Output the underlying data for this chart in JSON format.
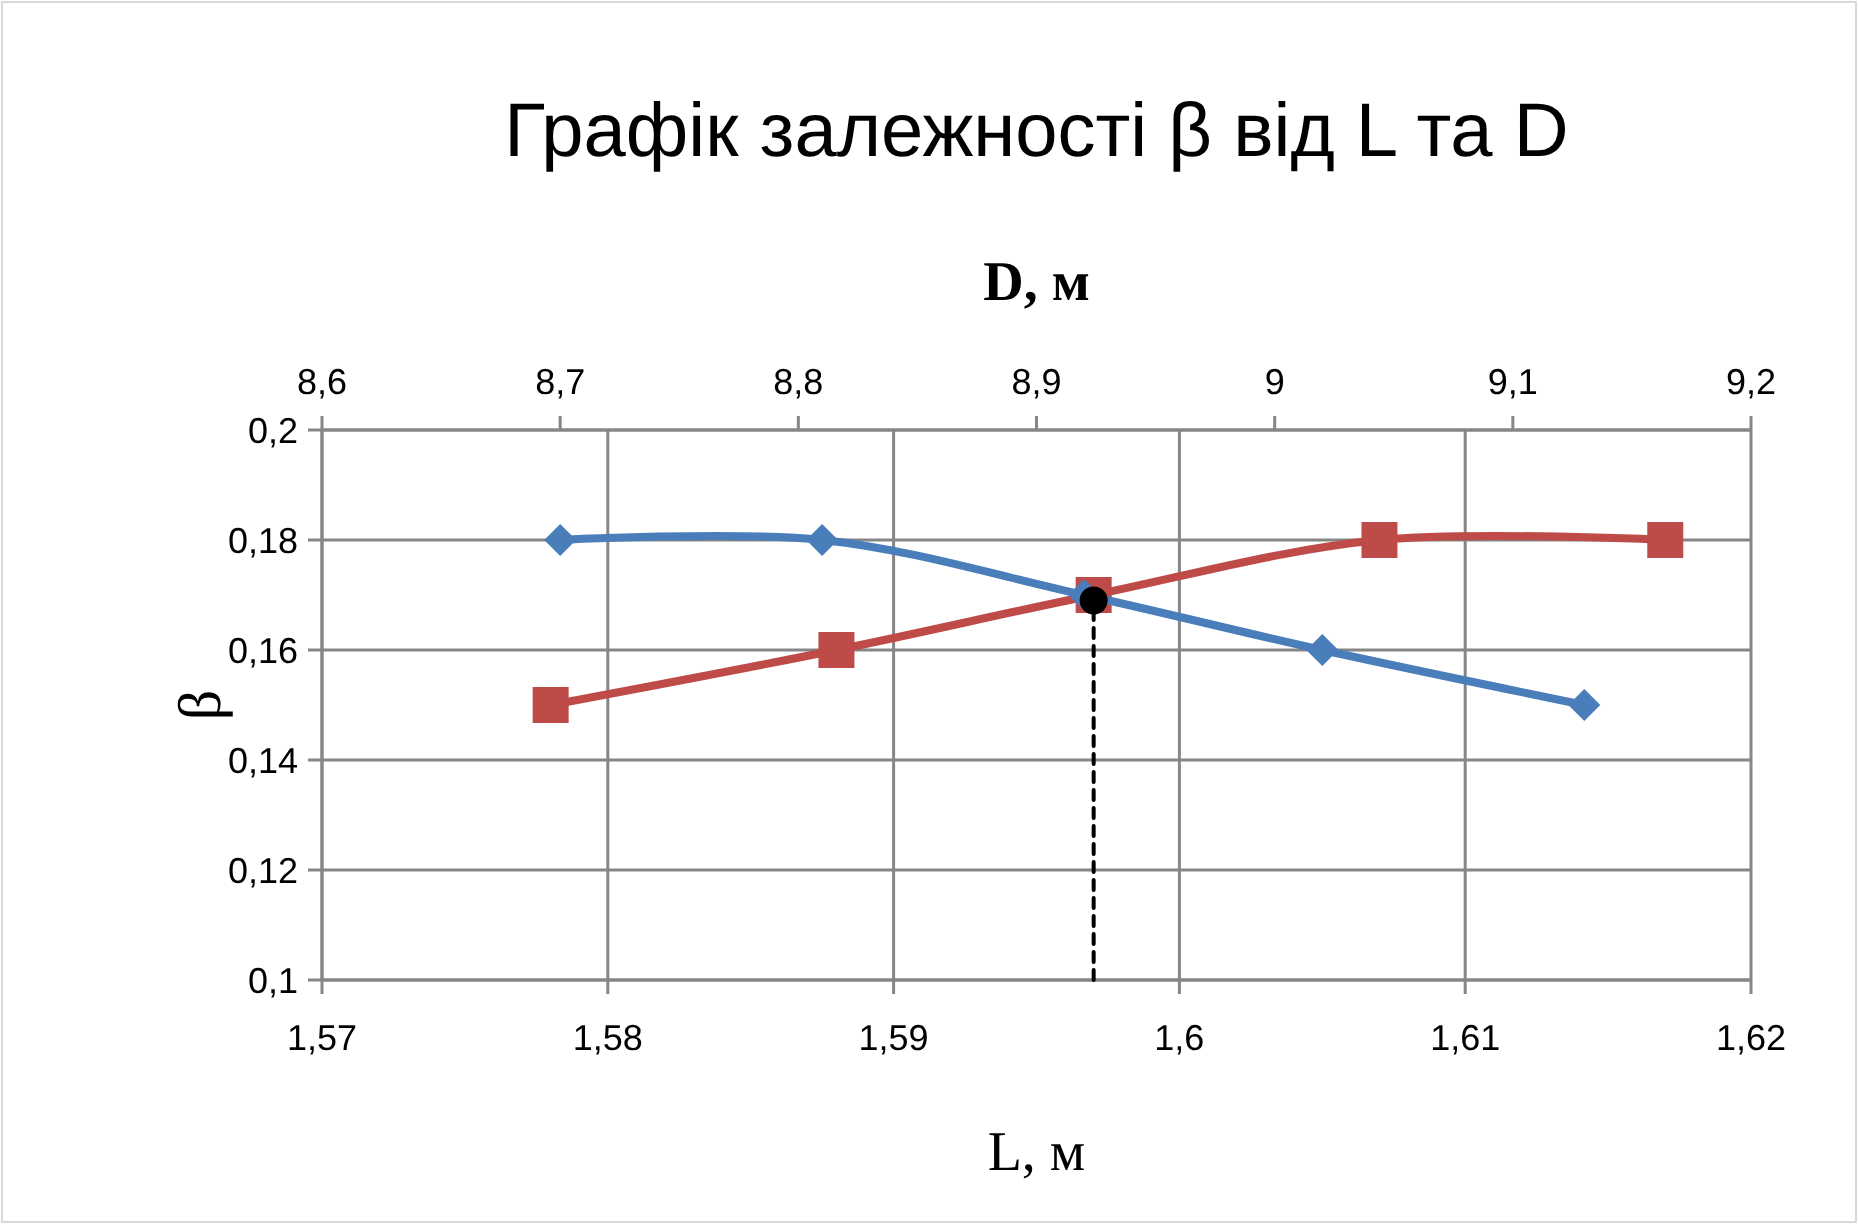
{
  "chart_data": {
    "type": "line",
    "title": "Графік залежності β від L та D",
    "xlabel": "L, м",
    "x2label": "D, м",
    "ylabel": "β",
    "xlim": [
      1.57,
      1.62
    ],
    "xticks": [
      {
        "value": 1.57,
        "label": "1,57"
      },
      {
        "value": 1.58,
        "label": "1,58"
      },
      {
        "value": 1.59,
        "label": "1,59"
      },
      {
        "value": 1.6,
        "label": "1,6"
      },
      {
        "value": 1.61,
        "label": "1,61"
      },
      {
        "value": 1.62,
        "label": "1,62"
      }
    ],
    "x2lim": [
      8.6,
      9.2
    ],
    "x2ticks": [
      {
        "value": 8.6,
        "label": "8,6"
      },
      {
        "value": 8.7,
        "label": "8,7"
      },
      {
        "value": 8.8,
        "label": "8,8"
      },
      {
        "value": 8.9,
        "label": "8,9"
      },
      9,
      {
        "value": 9.1,
        "label": "9,1"
      },
      {
        "value": 9.2,
        "label": "9,2"
      }
    ],
    "ylim": [
      0.1,
      0.2
    ],
    "yticks": [
      {
        "value": 0.1,
        "label": "0,1"
      },
      {
        "value": 0.12,
        "label": "0,12"
      },
      {
        "value": 0.14,
        "label": "0,14"
      },
      {
        "value": 0.16,
        "label": "0,16"
      },
      {
        "value": 0.18,
        "label": "0,18"
      },
      {
        "value": 0.2,
        "label": "0,2"
      }
    ],
    "grid": true,
    "series": [
      {
        "color": "#be4b48",
        "marker": "square",
        "x": [
          1.578,
          1.588,
          1.597,
          1.607,
          1.617
        ],
        "values": [
          0.15,
          0.16,
          0.17,
          0.18,
          0.18
        ]
      },
      {
        "axis": "x2",
        "color": "#4a7ebb",
        "marker": "diamond",
        "x": [
          8.7,
          8.81,
          8.92,
          9.02,
          9.13
        ],
        "values": [
          0.18,
          0.18,
          0.17,
          0.16,
          0.15
        ]
      },
      {
        "color": "#000000",
        "marker": "none",
        "line_style": "dashed",
        "x": [
          1.597,
          1.597
        ],
        "values": [
          0.1,
          0.169
        ]
      },
      {
        "type": "scatter",
        "color": "#000000",
        "marker": "circle",
        "x": [
          1.597
        ],
        "values": [
          0.169
        ]
      }
    ]
  }
}
